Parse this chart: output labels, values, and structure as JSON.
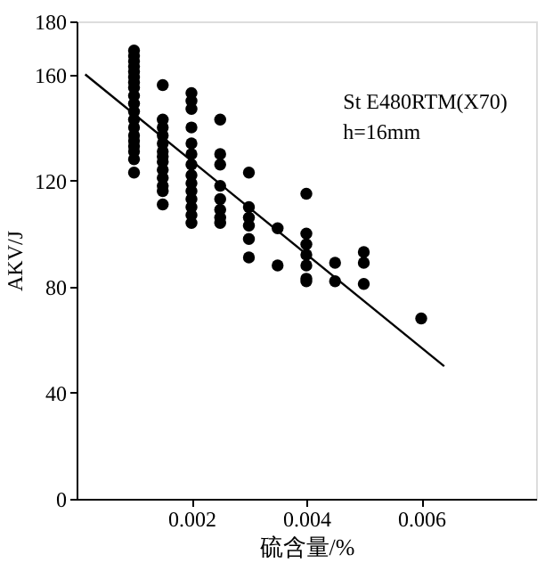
{
  "chart_data": {
    "type": "scatter",
    "xlabel": "硫含量/%",
    "ylabel": "AKV/J",
    "annotations": [
      "St E480RTM(X70)",
      "h=16mm"
    ],
    "xlim": [
      0,
      0.008
    ],
    "xticks": [
      0.002,
      0.004,
      0.006
    ],
    "ylim": [
      0,
      180
    ],
    "yticks": [
      0,
      40,
      80,
      120,
      160,
      180
    ],
    "grid": false,
    "series": [
      {
        "color": "#000000",
        "marker": "circle",
        "x": [
          0.001,
          0.001,
          0.001,
          0.001,
          0.001,
          0.001,
          0.001,
          0.001,
          0.001,
          0.001,
          0.001,
          0.001,
          0.001,
          0.001,
          0.001,
          0.001,
          0.001,
          0.001,
          0.001,
          0.0015,
          0.0015,
          0.0015,
          0.0015,
          0.0015,
          0.0015,
          0.0015,
          0.0015,
          0.0015,
          0.0015,
          0.0015,
          0.0015,
          0.0015,
          0.002,
          0.002,
          0.002,
          0.002,
          0.002,
          0.002,
          0.002,
          0.002,
          0.002,
          0.002,
          0.002,
          0.002,
          0.002,
          0.002,
          0.0025,
          0.0025,
          0.0025,
          0.0025,
          0.0025,
          0.0025,
          0.0025,
          0.0025,
          0.003,
          0.003,
          0.003,
          0.003,
          0.003,
          0.003,
          0.0035,
          0.0035,
          0.004,
          0.004,
          0.004,
          0.004,
          0.004,
          0.004,
          0.004,
          0.0045,
          0.0045,
          0.005,
          0.005,
          0.005,
          0.006
        ],
        "values": [
          169,
          167,
          165,
          163,
          161,
          159,
          157,
          155,
          152,
          149,
          146,
          143,
          140,
          137,
          135,
          133,
          131,
          128,
          123,
          156,
          143,
          140,
          137,
          134,
          131,
          129,
          127,
          124,
          121,
          118,
          116,
          111,
          153,
          150,
          147,
          140,
          134,
          130,
          126,
          122,
          119,
          116,
          113,
          110,
          107,
          104,
          143,
          130,
          126,
          118,
          113,
          109,
          106,
          104,
          123,
          110,
          106,
          103,
          98,
          91,
          102,
          88,
          115,
          100,
          96,
          92,
          88,
          83,
          82,
          89,
          82,
          93,
          89,
          81,
          68
        ]
      },
      {
        "type": "line",
        "color": "#000000",
        "line_style": "solid",
        "x": [
          0.00015,
          0.0064
        ],
        "values": [
          160,
          50
        ]
      }
    ]
  }
}
